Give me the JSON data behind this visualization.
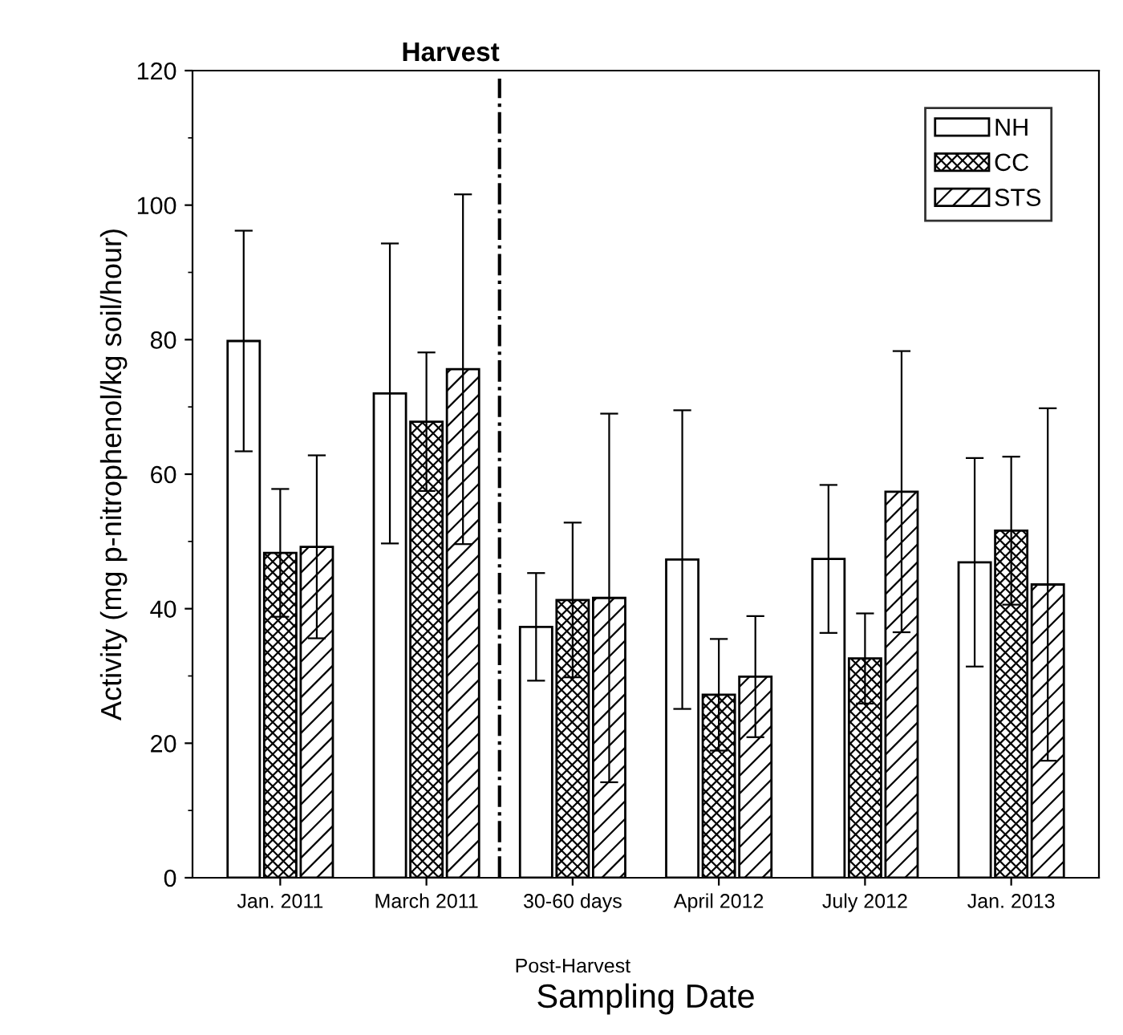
{
  "chart_data": {
    "type": "bar",
    "xlabel": "Sampling Date",
    "ylabel": "Activity (mg p-nitrophenol/kg soil/hour)",
    "categories": [
      "Jan. 2011",
      "March 2011",
      "30-60 days",
      "April 2012",
      "July 2012",
      "Jan. 2013"
    ],
    "series": [
      {
        "name": "NH",
        "color": "#ffffff",
        "values": [
          79.8,
          72.0,
          37.3,
          47.3,
          47.4,
          46.9
        ],
        "errors": [
          16.4,
          22.3,
          8.0,
          22.2,
          11.0,
          15.5
        ]
      },
      {
        "name": "CC",
        "color": "#000000",
        "values": [
          48.3,
          67.8,
          41.3,
          27.2,
          32.6,
          51.6
        ],
        "errors": [
          9.5,
          10.3,
          11.5,
          8.3,
          6.7,
          11.0
        ]
      },
      {
        "name": "STS",
        "color": "#000000",
        "values": [
          49.2,
          75.6,
          41.6,
          29.9,
          57.4,
          43.6
        ],
        "errors": [
          13.6,
          26.0,
          27.4,
          9.0,
          20.9,
          26.2
        ]
      }
    ],
    "ylim": [
      0,
      120
    ],
    "yticks": [
      0,
      20,
      40,
      60,
      80,
      100,
      120
    ],
    "annotations": [
      "Harvest",
      "Post-Harvest"
    ],
    "grid": false,
    "legend": "top right"
  }
}
